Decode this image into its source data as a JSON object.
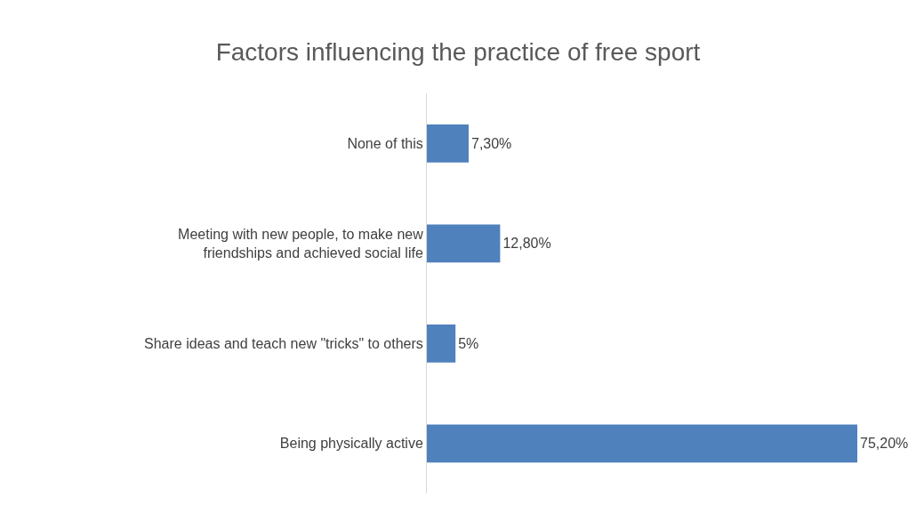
{
  "chart_data": {
    "type": "bar",
    "orientation": "horizontal",
    "title": "Factors influencing the practice of free sport",
    "categories": [
      "None of this",
      "Meeting with new people, to make new\nfriendships and achieved social life",
      "Share ideas and teach new \"tricks\" to others",
      "Being physically active"
    ],
    "values": [
      7.3,
      12.8,
      5,
      75.2
    ],
    "value_labels": [
      "7,30%",
      "12,80%",
      "5%",
      "75,20%"
    ],
    "color": "#4f81bd",
    "xlim": [
      0,
      75.2
    ],
    "grid": false,
    "legend": false
  }
}
